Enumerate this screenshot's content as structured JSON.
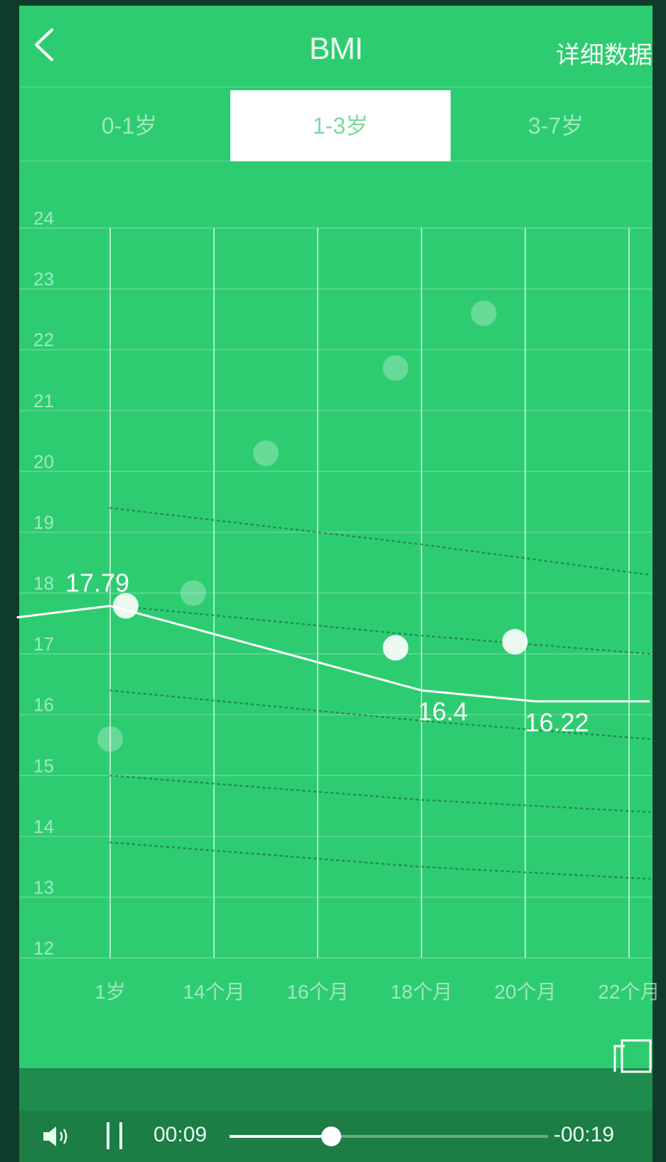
{
  "header": {
    "back_icon": "chevron-left-icon",
    "title": "BMI",
    "detail_label": "详细数据"
  },
  "tabs": [
    {
      "label": "0-1岁",
      "active": false
    },
    {
      "label": "1-3岁",
      "active": true
    },
    {
      "label": "3-7岁",
      "active": false
    }
  ],
  "chart_data": {
    "type": "line",
    "y_ticks": [
      "24",
      "23",
      "22",
      "21",
      "20",
      "19",
      "18",
      "17",
      "16",
      "15",
      "14",
      "13",
      "12"
    ],
    "ylim": [
      12,
      24
    ],
    "x_tick_labels": [
      "1岁",
      "14个月",
      "16个月",
      "18个月",
      "20个月",
      "22个月"
    ],
    "x_tick_months": [
      12,
      14,
      16,
      18,
      20,
      22
    ],
    "grid": true,
    "series": [
      {
        "role": "measured",
        "points": [
          {
            "x": 10.2,
            "y": 17.6
          },
          {
            "x": 12,
            "y": 17.79,
            "label": "17.79"
          },
          {
            "x": 18,
            "y": 16.4,
            "label": "16.4"
          },
          {
            "x": 20.2,
            "y": 16.22,
            "label": "16.22"
          },
          {
            "x": 22.4,
            "y": 16.22
          }
        ]
      },
      {
        "role": "reference",
        "points": [
          {
            "x": 12,
            "y": 19.4
          },
          {
            "x": 18,
            "y": 18.8
          },
          {
            "x": 22.4,
            "y": 18.3
          }
        ]
      },
      {
        "role": "reference",
        "points": [
          {
            "x": 12,
            "y": 17.8
          },
          {
            "x": 18,
            "y": 17.3
          },
          {
            "x": 22.4,
            "y": 17.0
          }
        ]
      },
      {
        "role": "reference",
        "points": [
          {
            "x": 12,
            "y": 16.4
          },
          {
            "x": 18,
            "y": 15.9
          },
          {
            "x": 22.4,
            "y": 15.6
          }
        ]
      },
      {
        "role": "reference",
        "points": [
          {
            "x": 12,
            "y": 15.0
          },
          {
            "x": 18,
            "y": 14.6
          },
          {
            "x": 22.4,
            "y": 14.4
          }
        ]
      },
      {
        "role": "reference",
        "points": [
          {
            "x": 12,
            "y": 13.9
          },
          {
            "x": 18,
            "y": 13.5
          },
          {
            "x": 22.4,
            "y": 13.3
          }
        ]
      }
    ],
    "markers_solid": [
      {
        "x": 12.3,
        "y": 17.79
      },
      {
        "x": 17.5,
        "y": 17.1
      },
      {
        "x": 19.8,
        "y": 17.2
      }
    ],
    "markers_faint": [
      {
        "x": 12,
        "y": 15.6
      },
      {
        "x": 13.6,
        "y": 18.0
      },
      {
        "x": 15.0,
        "y": 20.3
      },
      {
        "x": 17.5,
        "y": 21.7
      },
      {
        "x": 19.2,
        "y": 22.6
      }
    ]
  },
  "player": {
    "volume_icon": "volume-icon",
    "pause_icon": "pause-icon",
    "fullscreen_icon": "fullscreen-icon",
    "time_current": "00:09",
    "time_remaining": "-00:19",
    "progress": 0.32
  }
}
